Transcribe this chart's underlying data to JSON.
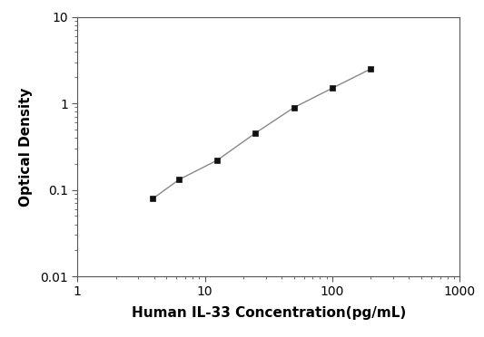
{
  "x": [
    3.9,
    6.25,
    12.5,
    25,
    50,
    100,
    200
  ],
  "y": [
    0.079,
    0.131,
    0.22,
    0.455,
    0.895,
    1.5,
    2.5
  ],
  "xlabel": "Human IL-33 Concentration(pg/mL)",
  "ylabel": "Optical Density",
  "xlim": [
    1,
    1000
  ],
  "ylim": [
    0.01,
    10
  ],
  "line_color": "#888888",
  "marker_color": "#111111",
  "marker": "s",
  "marker_size": 5,
  "line_width": 1.0,
  "xlabel_fontsize": 11,
  "ylabel_fontsize": 11,
  "tick_labelsize": 10,
  "background_color": "#ffffff"
}
